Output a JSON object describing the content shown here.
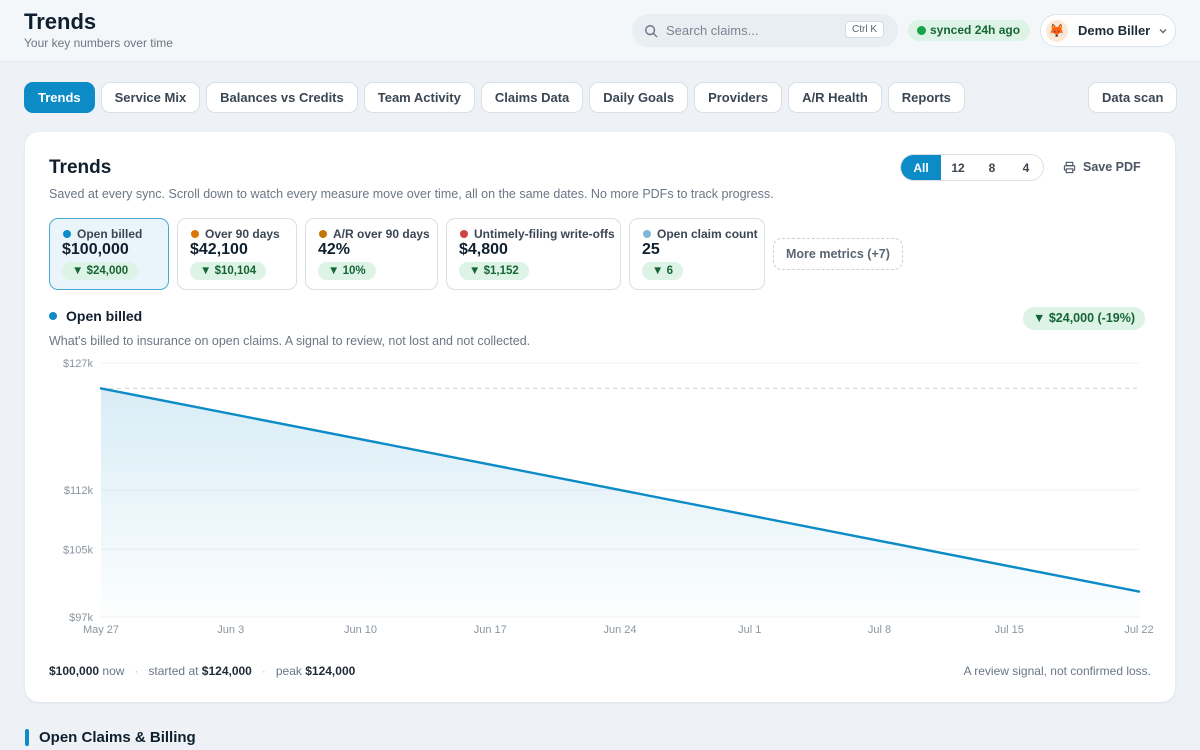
{
  "header": {
    "title": "Trends",
    "subtitle": "Your key numbers over time",
    "search_placeholder": "Search claims...",
    "search_shortcut": "Ctrl K",
    "sync_status": "synced 24h ago",
    "user_name": "Demo Biller"
  },
  "tabs": [
    {
      "label": "Trends",
      "active": true
    },
    {
      "label": "Service Mix"
    },
    {
      "label": "Balances vs Credits"
    },
    {
      "label": "Team Activity"
    },
    {
      "label": "Claims Data"
    },
    {
      "label": "Daily Goals"
    },
    {
      "label": "Providers"
    },
    {
      "label": "A/R Health"
    },
    {
      "label": "Reports"
    }
  ],
  "data_scan_label": "Data scan",
  "card": {
    "title": "Trends",
    "description": "Saved at every sync. Scroll down to watch every measure move over time, all on the same dates. No more PDFs to track progress.",
    "range_options": [
      "All",
      "12",
      "8",
      "4"
    ],
    "save_pdf_label": "Save PDF"
  },
  "metrics": [
    {
      "label": "Open billed",
      "value": "$100,000",
      "delta": "▼ $24,000",
      "color": "#0c8bc6"
    },
    {
      "label": "Over 90 days",
      "value": "$42,100",
      "delta": "▼ $10,104",
      "color": "#d97706"
    },
    {
      "label": "A/R over 90 days",
      "value": "42%",
      "delta": "▼ 10%",
      "color": "#c2740c"
    },
    {
      "label": "Untimely-filing write-offs",
      "value": "$4,800",
      "delta": "▼ $1,152",
      "color": "#d14343"
    },
    {
      "label": "Open claim count",
      "value": "25",
      "delta": "▼ 6",
      "color": "#7cb8dc"
    }
  ],
  "more_metrics_label": "More metrics (+7)",
  "series": {
    "name": "Open billed",
    "description": "What's billed to insurance on open claims. A signal to review, not lost and not collected.",
    "delta": "▼ $24,000 (-19%)"
  },
  "chart_data": {
    "type": "area",
    "x": [
      "May 27",
      "Jul 22"
    ],
    "series": [
      {
        "name": "Open billed",
        "values": [
          124000,
          100000
        ]
      }
    ],
    "ytick_labels": [
      "$127k",
      "$112k",
      "$105k",
      "$97k"
    ],
    "yticks": [
      127000,
      112000,
      105000,
      97000
    ],
    "xtick_labels": [
      "May 27",
      "Jun 3",
      "Jun 10",
      "Jun 17",
      "Jun 24",
      "Jul 1",
      "Jul 8",
      "Jul 15",
      "Jul 22"
    ],
    "ylim": [
      97000,
      127000
    ],
    "reference_line": 124000,
    "line_color": "#0c8bc6"
  },
  "footer": {
    "now_value": "$100,000",
    "now_label": "now",
    "started_label": "started at",
    "started_value": "$124,000",
    "peak_label": "peak",
    "peak_value": "$124,000",
    "note": "A review signal, not confirmed loss."
  },
  "section_title": "Open Claims & Billing"
}
